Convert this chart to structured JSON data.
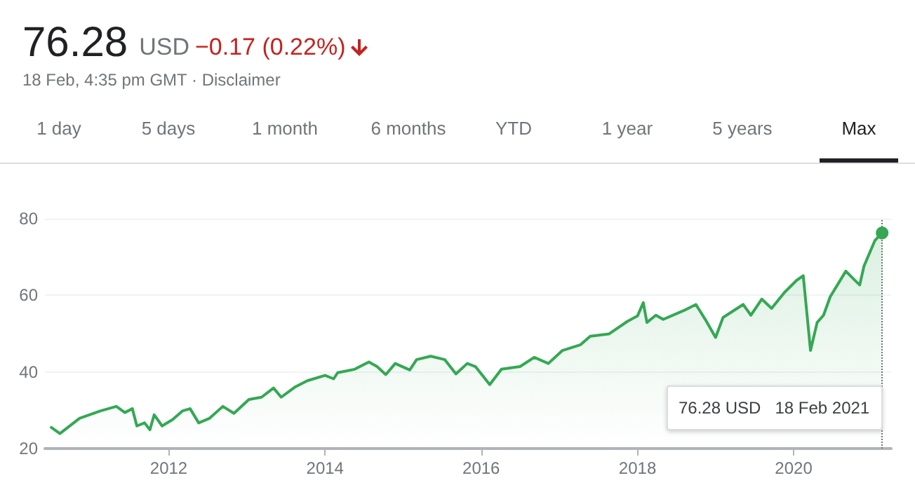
{
  "chart_data": {
    "type": "area",
    "title": "76.28",
    "subtitle": "18 Feb, 4:35 pm GMT · Disclaimer",
    "annotations": [
      "USD",
      "−0.17 (0.22%)",
      "1 day",
      "5 days",
      "1 month",
      "6 months",
      "YTD",
      "1 year",
      "5 years",
      "Max",
      "76.28 USD   18 Feb 2021"
    ],
    "ref_lines": [
      {
        "axis": "x",
        "value": "2021-02-18",
        "color": "#70757a",
        "line_style": "dotted"
      }
    ],
    "x": [
      "2010-07-01",
      "2010-08-10",
      "2010-11-10",
      "2011-02-15",
      "2011-05-01",
      "2011-06-10",
      "2011-07-15",
      "2011-08-05",
      "2011-09-10",
      "2011-10-05",
      "2011-10-25",
      "2011-12-01",
      "2012-01-20",
      "2012-03-05",
      "2012-04-10",
      "2012-05-20",
      "2012-07-10",
      "2012-09-10",
      "2012-11-01",
      "2013-01-10",
      "2013-03-10",
      "2013-05-05",
      "2013-06-10",
      "2013-08-15",
      "2013-10-10",
      "2014-01-01",
      "2014-02-10",
      "2014-03-01",
      "2014-05-20",
      "2014-07-25",
      "2014-09-01",
      "2014-10-12",
      "2014-11-25",
      "2015-02-01",
      "2015-03-05",
      "2015-05-10",
      "2015-07-15",
      "2015-09-05",
      "2015-10-28",
      "2015-12-05",
      "2016-01-10",
      "2016-02-10",
      "2016-04-05",
      "2016-07-01",
      "2016-09-05",
      "2016-11-10",
      "2017-01-15",
      "2017-04-10",
      "2017-05-25",
      "2017-08-20",
      "2017-11-15",
      "2018-01-01",
      "2018-01-28",
      "2018-02-14",
      "2018-03-28",
      "2018-05-01",
      "2018-08-05",
      "2018-10-01",
      "2018-11-15",
      "2019-01-01",
      "2019-02-05",
      "2019-05-10",
      "2019-06-15",
      "2019-08-05",
      "2019-09-20",
      "2019-11-20",
      "2020-01-15",
      "2020-02-15",
      "2020-03-20",
      "2020-04-20",
      "2020-05-20",
      "2020-06-20",
      "2020-09-01",
      "2020-10-10",
      "2020-11-05",
      "2020-11-25",
      "2021-01-15",
      "2021-02-18"
    ],
    "values": [
      25.5,
      23.9,
      27.9,
      29.8,
      31.0,
      29.4,
      30.4,
      25.9,
      26.7,
      24.9,
      28.8,
      25.9,
      27.6,
      29.8,
      30.4,
      26.7,
      27.9,
      31.0,
      29.2,
      32.8,
      33.4,
      35.8,
      33.4,
      36.1,
      37.7,
      39.1,
      38.2,
      39.8,
      40.7,
      42.6,
      41.4,
      39.3,
      42.2,
      40.5,
      43.2,
      44.1,
      43.2,
      39.5,
      42.2,
      41.4,
      38.9,
      36.7,
      40.7,
      41.4,
      43.8,
      42.2,
      45.6,
      47.1,
      49.3,
      49.9,
      53.2,
      54.6,
      58.1,
      52.9,
      54.8,
      53.7,
      56.0,
      57.6,
      53.6,
      49.0,
      54.2,
      57.6,
      54.8,
      59.0,
      56.6,
      60.8,
      63.9,
      65.1,
      45.6,
      52.9,
      54.8,
      59.6,
      66.3,
      64.1,
      62.7,
      67.6,
      74.3,
      76.28
    ],
    "color": "#34a853",
    "xlim": [
      "2010-06-01",
      "2021-04-01"
    ],
    "xticks": [
      "2012",
      "2014",
      "2016",
      "2018",
      "2020"
    ],
    "ylim": [
      20,
      80
    ],
    "yticks": [
      20,
      40,
      60,
      80
    ],
    "grid": "y",
    "marker": "none",
    "line_style": "solid"
  }
}
